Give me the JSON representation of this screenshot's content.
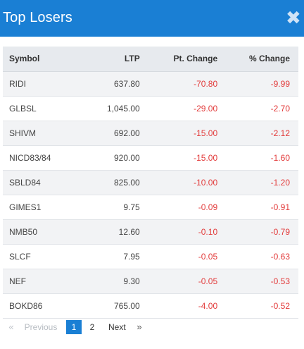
{
  "modal": {
    "title": "Top Losers",
    "close_glyph": "✖",
    "close_icon": "close-icon"
  },
  "table": {
    "headers": [
      "Symbol",
      "LTP",
      "Pt. Change",
      "% Change"
    ],
    "rows": [
      {
        "symbol": "RIDI",
        "ltp": "637.80",
        "pt_change": "-70.80",
        "pct_change": "-9.99"
      },
      {
        "symbol": "GLBSL",
        "ltp": "1,045.00",
        "pt_change": "-29.00",
        "pct_change": "-2.70"
      },
      {
        "symbol": "SHIVM",
        "ltp": "692.00",
        "pt_change": "-15.00",
        "pct_change": "-2.12"
      },
      {
        "symbol": "NICD83/84",
        "ltp": "920.00",
        "pt_change": "-15.00",
        "pct_change": "-1.60"
      },
      {
        "symbol": "SBLD84",
        "ltp": "825.00",
        "pt_change": "-10.00",
        "pct_change": "-1.20"
      },
      {
        "symbol": "GIMES1",
        "ltp": "9.75",
        "pt_change": "-0.09",
        "pct_change": "-0.91"
      },
      {
        "symbol": "NMB50",
        "ltp": "12.60",
        "pt_change": "-0.10",
        "pct_change": "-0.79"
      },
      {
        "symbol": "SLCF",
        "ltp": "7.95",
        "pt_change": "-0.05",
        "pct_change": "-0.63"
      },
      {
        "symbol": "NEF",
        "ltp": "9.30",
        "pt_change": "-0.05",
        "pct_change": "-0.53"
      },
      {
        "symbol": "BOKD86",
        "ltp": "765.00",
        "pt_change": "-4.00",
        "pct_change": "-0.52"
      }
    ]
  },
  "pagination": {
    "first": "«",
    "previous": "Previous",
    "pages": [
      "1",
      "2"
    ],
    "current_page": "1",
    "next": "Next",
    "last": "»"
  },
  "colors": {
    "header_bg": "#1a7fd4",
    "negative": "#e23a3a",
    "table_header_bg": "#e7eaee"
  }
}
